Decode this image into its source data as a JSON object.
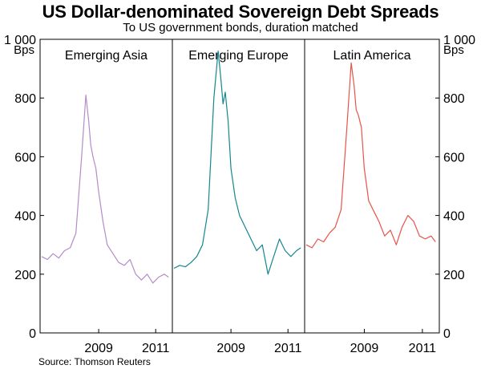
{
  "title": "US Dollar-denominated Sovereign Debt Spreads",
  "subtitle": "To US government bonds, duration matched",
  "source": "Source: Thomson Reuters",
  "chart_data": {
    "type": "line",
    "title": "US Dollar-denominated Sovereign Debt Spreads",
    "subtitle": "To US government bonds, duration matched",
    "ylabel_left": "Bps",
    "ylabel_right": "Bps",
    "ylim": [
      0,
      1000
    ],
    "yticks": [
      0,
      200,
      400,
      600,
      800,
      1000
    ],
    "ytick_labels": [
      "0",
      "200",
      "400",
      "600",
      "800",
      "1 000"
    ],
    "xlim": [
      2007.0,
      2011.5
    ],
    "xticks": [
      2009,
      2011
    ],
    "xtick_labels": [
      "2009",
      "2011"
    ],
    "panels": [
      {
        "name": "Emerging Asia",
        "color": "#b48cc8",
        "x": [
          2007.0,
          2007.2,
          2007.4,
          2007.6,
          2007.8,
          2008.0,
          2008.2,
          2008.4,
          2008.55,
          2008.65,
          2008.72,
          2008.8,
          2008.9,
          2009.0,
          2009.15,
          2009.3,
          2009.5,
          2009.7,
          2009.9,
          2010.1,
          2010.3,
          2010.5,
          2010.7,
          2010.9,
          2011.1,
          2011.3,
          2011.45
        ],
        "values": [
          260,
          250,
          270,
          255,
          280,
          290,
          340,
          600,
          810,
          720,
          640,
          600,
          560,
          480,
          380,
          300,
          270,
          240,
          230,
          250,
          200,
          180,
          200,
          170,
          190,
          200,
          190
        ]
      },
      {
        "name": "Emerging Europe",
        "color": "#13878f",
        "x": [
          2007.0,
          2007.2,
          2007.4,
          2007.6,
          2007.8,
          2008.0,
          2008.2,
          2008.4,
          2008.55,
          2008.65,
          2008.72,
          2008.8,
          2008.9,
          2009.0,
          2009.15,
          2009.3,
          2009.5,
          2009.7,
          2009.9,
          2010.1,
          2010.3,
          2010.5,
          2010.7,
          2010.9,
          2011.1,
          2011.3,
          2011.45
        ],
        "values": [
          220,
          230,
          225,
          240,
          260,
          300,
          420,
          800,
          960,
          860,
          780,
          820,
          720,
          560,
          460,
          400,
          360,
          320,
          280,
          300,
          200,
          260,
          320,
          280,
          260,
          280,
          290
        ]
      },
      {
        "name": "Latin America",
        "color": "#e8534a",
        "x": [
          2007.0,
          2007.2,
          2007.4,
          2007.6,
          2007.8,
          2008.0,
          2008.2,
          2008.4,
          2008.55,
          2008.65,
          2008.72,
          2008.8,
          2008.9,
          2009.0,
          2009.15,
          2009.3,
          2009.5,
          2009.7,
          2009.9,
          2010.1,
          2010.3,
          2010.5,
          2010.7,
          2010.9,
          2011.1,
          2011.3,
          2011.45
        ],
        "values": [
          300,
          290,
          320,
          310,
          340,
          360,
          420,
          700,
          920,
          840,
          760,
          740,
          700,
          560,
          450,
          420,
          380,
          330,
          350,
          300,
          360,
          400,
          380,
          330,
          320,
          330,
          310
        ]
      }
    ]
  }
}
